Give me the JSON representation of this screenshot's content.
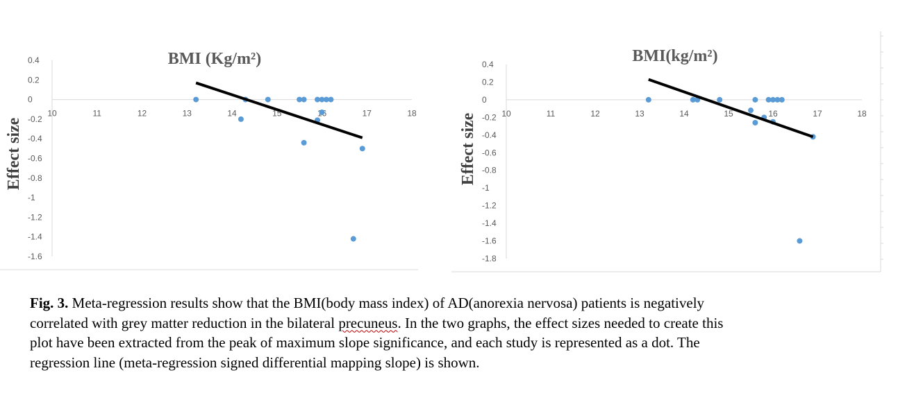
{
  "chart_data": [
    {
      "type": "scatter",
      "title": "BMI (Kg/m²)",
      "xlabel": "",
      "ylabel": "Effect size",
      "xlim": [
        10,
        18
      ],
      "ylim": [
        -1.6,
        0.4
      ],
      "xticks": [
        "10",
        "11",
        "12",
        "13",
        "14",
        "15",
        "16",
        "17",
        "18"
      ],
      "yticks": [
        "0.4",
        "0.2",
        "0",
        "-0.2",
        "-0.4",
        "-0.6",
        "-0.8",
        "-1",
        "-1.2",
        "-1.4",
        "-1.6"
      ],
      "grid": false,
      "points": [
        {
          "x": 13.2,
          "y": 0
        },
        {
          "x": 14.3,
          "y": 0
        },
        {
          "x": 14.8,
          "y": 0
        },
        {
          "x": 15.5,
          "y": 0
        },
        {
          "x": 15.6,
          "y": 0
        },
        {
          "x": 15.9,
          "y": 0
        },
        {
          "x": 16.0,
          "y": 0
        },
        {
          "x": 16.1,
          "y": 0
        },
        {
          "x": 16.2,
          "y": 0
        },
        {
          "x": 14.2,
          "y": -0.2
        },
        {
          "x": 16.0,
          "y": -0.13
        },
        {
          "x": 15.9,
          "y": -0.21
        },
        {
          "x": 15.6,
          "y": -0.44
        },
        {
          "x": 16.9,
          "y": -0.5
        },
        {
          "x": 16.7,
          "y": -1.42
        }
      ],
      "trendline": {
        "x": [
          13.2,
          16.9
        ],
        "y": [
          0.17,
          -0.39
        ]
      }
    },
    {
      "type": "scatter",
      "title": "BMI(kg/m²)",
      "xlabel": "",
      "ylabel": "Effect size",
      "xlim": [
        10,
        18
      ],
      "ylim": [
        -1.8,
        0.4
      ],
      "xticks": [
        "10",
        "11",
        "12",
        "13",
        "14",
        "15",
        "16",
        "17",
        "18"
      ],
      "yticks": [
        "0.4",
        "0.2",
        "0",
        "-0.2",
        "-0.4",
        "-0.6",
        "-0.8",
        "-1",
        "-1.2",
        "-1.4",
        "-1.6",
        "-1.8"
      ],
      "grid": false,
      "points": [
        {
          "x": 13.2,
          "y": 0
        },
        {
          "x": 14.2,
          "y": 0
        },
        {
          "x": 14.3,
          "y": 0
        },
        {
          "x": 14.8,
          "y": 0
        },
        {
          "x": 15.6,
          "y": 0
        },
        {
          "x": 15.9,
          "y": 0
        },
        {
          "x": 16.0,
          "y": 0
        },
        {
          "x": 16.1,
          "y": 0
        },
        {
          "x": 16.2,
          "y": 0
        },
        {
          "x": 15.5,
          "y": -0.12
        },
        {
          "x": 15.8,
          "y": -0.2
        },
        {
          "x": 15.6,
          "y": -0.26
        },
        {
          "x": 16.0,
          "y": -0.25
        },
        {
          "x": 16.9,
          "y": -0.42
        },
        {
          "x": 16.6,
          "y": -1.6
        }
      ],
      "trendline": {
        "x": [
          13.2,
          16.9
        ],
        "y": [
          0.23,
          -0.42
        ]
      }
    }
  ],
  "caption": {
    "label": "Fig. 3.",
    "text_1": " Meta-regression results show that the BMI(body mass index) of AD(anorexia nervosa) patients is negatively correlated with grey matter reduction  in the bilateral ",
    "flagged_word": "precuneus",
    "text_2": ". In the two graphs, the effect sizes needed to create this plot have been extracted from the peak of maximum slope significance, and each study is represented as a dot. The regression line (meta-regression signed differential mapping slope) is shown."
  }
}
